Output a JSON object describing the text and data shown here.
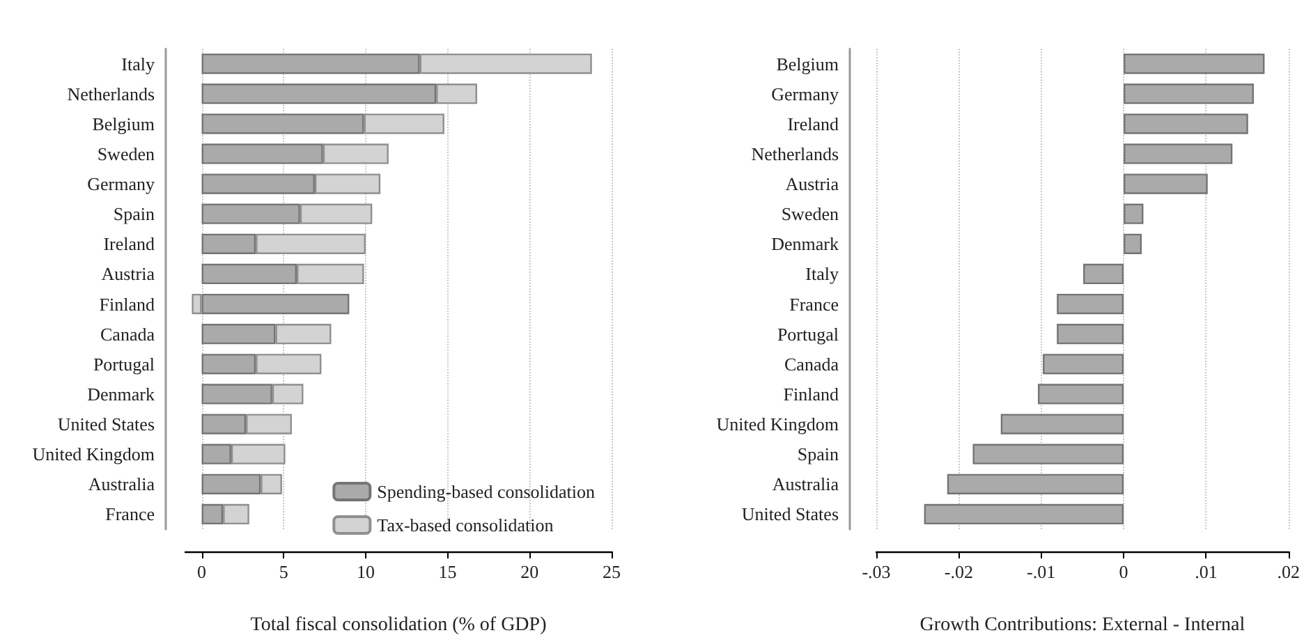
{
  "chart_data": [
    {
      "type": "bar",
      "orientation": "horizontal",
      "stacked": true,
      "categories": [
        "Italy",
        "Netherlands",
        "Belgium",
        "Sweden",
        "Germany",
        "Spain",
        "Ireland",
        "Austria",
        "Finland",
        "Canada",
        "Portugal",
        "Denmark",
        "United States",
        "United Kingdom",
        "Australia",
        "France"
      ],
      "series": [
        {
          "name": "Spending-based consolidation",
          "color": "#aaaaaa",
          "values": [
            13.3,
            14.3,
            9.9,
            7.4,
            6.9,
            6.0,
            3.3,
            5.8,
            9.0,
            4.5,
            3.3,
            4.3,
            2.7,
            1.8,
            3.6,
            1.3
          ]
        },
        {
          "name": "Tax-based consolidation",
          "color": "#d3d3d3",
          "values": [
            10.5,
            2.5,
            4.9,
            4.0,
            4.0,
            4.4,
            6.7,
            4.1,
            -0.6,
            3.4,
            4.0,
            1.9,
            2.8,
            3.3,
            1.3,
            1.6
          ]
        }
      ],
      "xlim": [
        -1,
        25
      ],
      "xticks": [
        0,
        5,
        10,
        15,
        20,
        25
      ],
      "grid": "x",
      "legend": "bottom right",
      "xlabel": "Total fiscal consolidation (% of GDP)"
    },
    {
      "type": "bar",
      "orientation": "horizontal",
      "categories": [
        "Belgium",
        "Germany",
        "Ireland",
        "Netherlands",
        "Austria",
        "Sweden",
        "Denmark",
        "Italy",
        "France",
        "Portugal",
        "Canada",
        "Finland",
        "United Kingdom",
        "Spain",
        "Australia",
        "United States"
      ],
      "series": [
        {
          "color": "#aaaaaa",
          "values": [
            0.0171,
            0.0158,
            0.0151,
            0.0132,
            0.0102,
            0.0024,
            0.0022,
            -0.0049,
            -0.0081,
            -0.0081,
            -0.0098,
            -0.0104,
            -0.0149,
            -0.0183,
            -0.0214,
            -0.0242
          ]
        }
      ],
      "xlim": [
        -0.03,
        0.02
      ],
      "xticks": [
        {
          "value": -0.03,
          "label": "-.03"
        },
        {
          "value": -0.02,
          "label": "-.02"
        },
        {
          "value": -0.01,
          "label": "-.01"
        },
        0,
        {
          "value": 0.01,
          "label": ".01"
        },
        {
          "value": 0.02,
          "label": ".02"
        }
      ],
      "grid": "x",
      "xlabel": "Growth Contributions: External - Internal"
    }
  ]
}
